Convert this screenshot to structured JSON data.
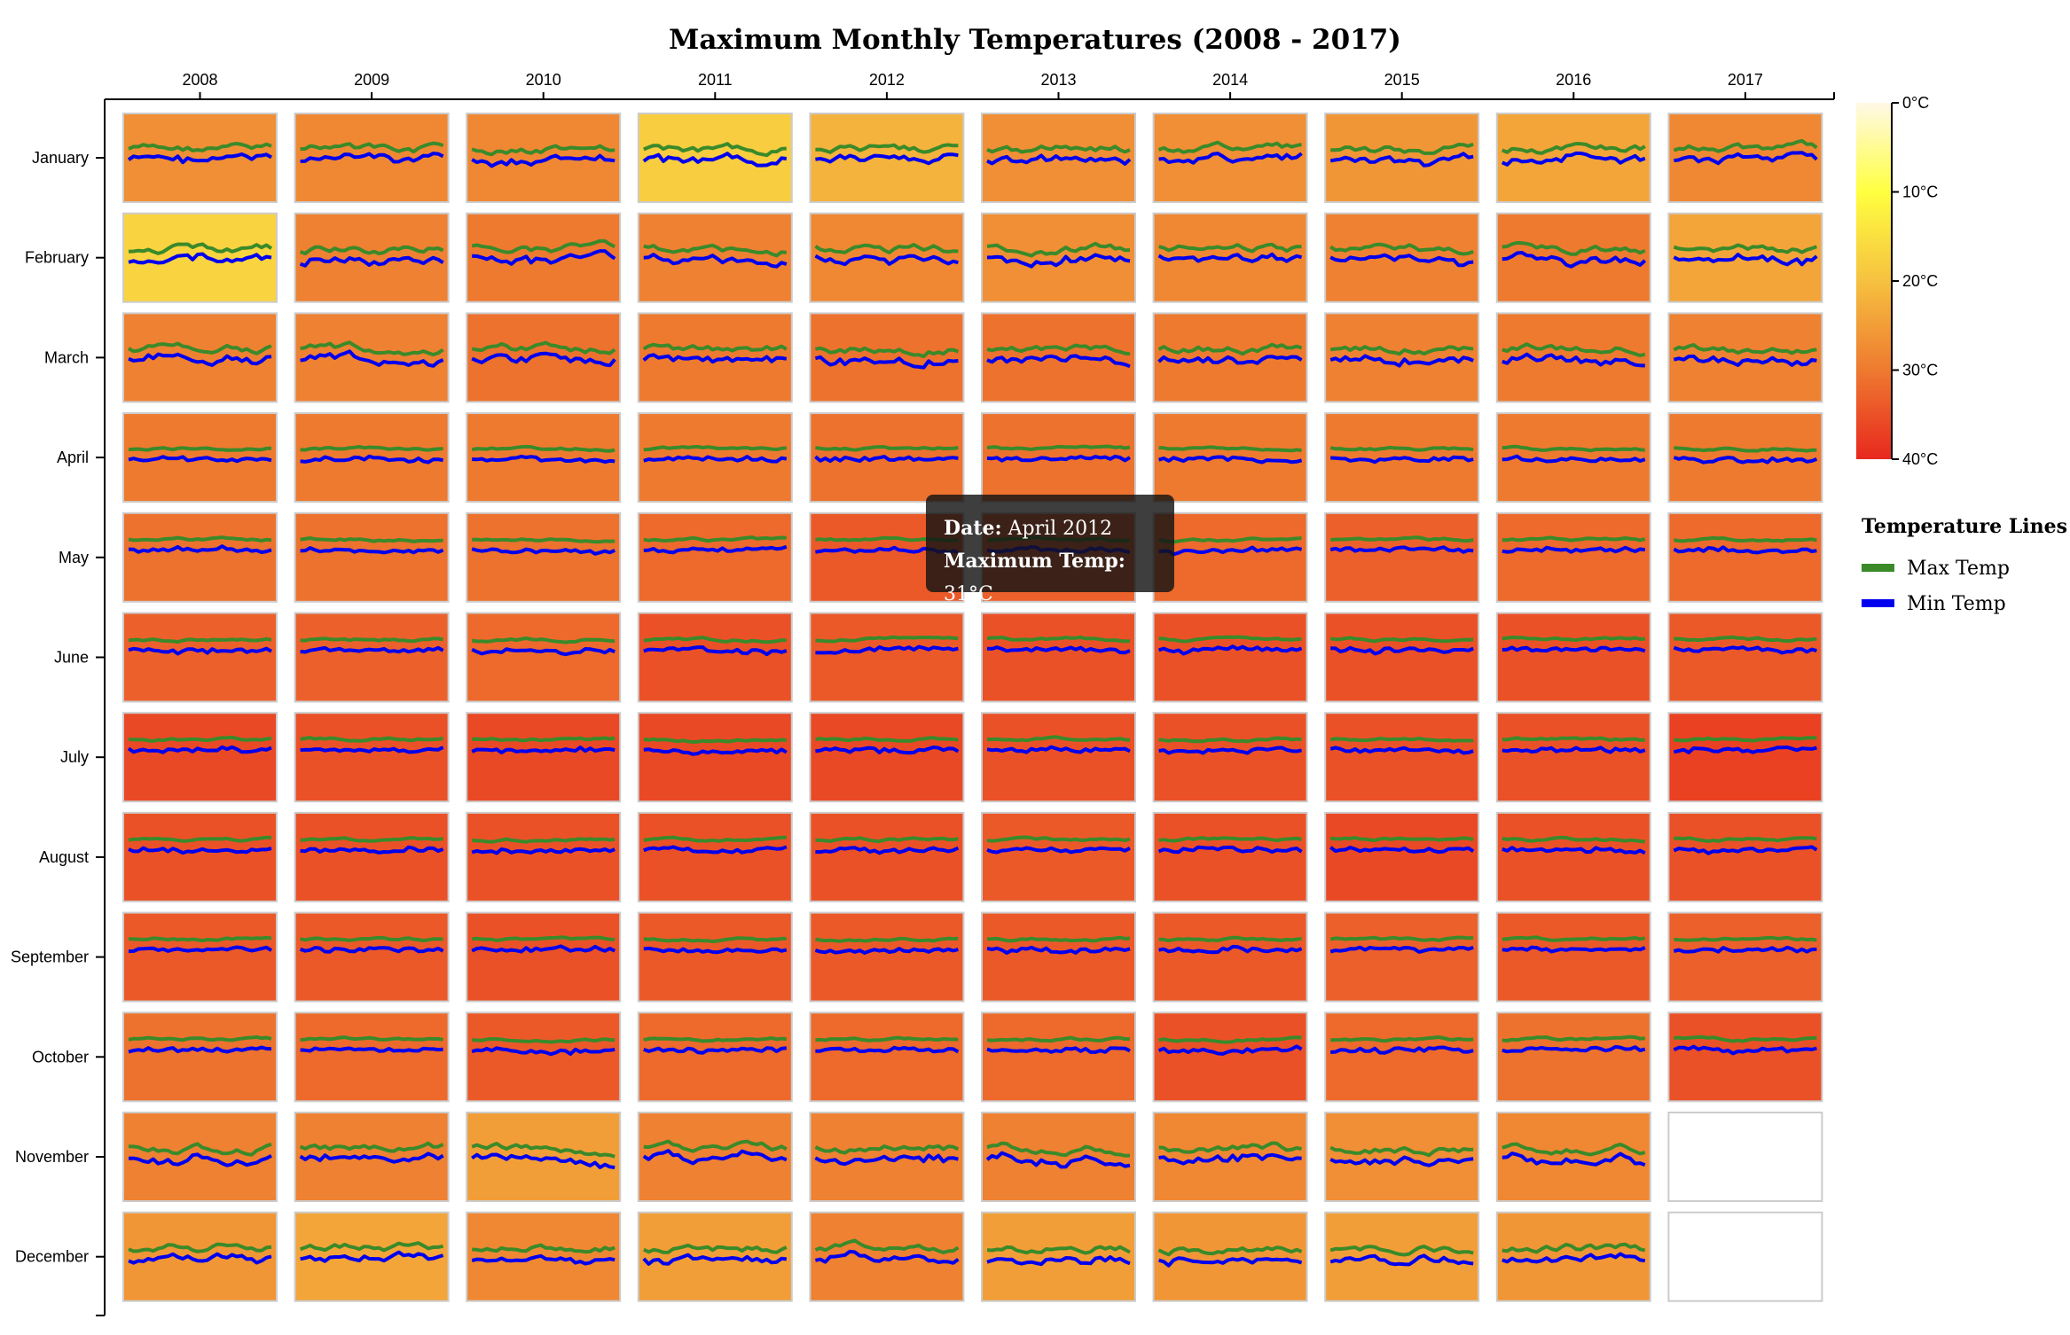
{
  "colors": {
    "max_line": "#3a8a2a",
    "min_line": "#0000ee",
    "axis": "#000000",
    "cell_border": "#cccccc",
    "scale": [
      "#fff8e6",
      "#ffff40",
      "#f6c140",
      "#ee7a30",
      "#e8281e"
    ]
  },
  "chart_data": {
    "type": "heatmap",
    "title": "Maximum Monthly Temperatures (2008 - 2017)",
    "x_categories": [
      "2008",
      "2009",
      "2010",
      "2011",
      "2012",
      "2013",
      "2014",
      "2015",
      "2016",
      "2017"
    ],
    "y_categories": [
      "January",
      "February",
      "March",
      "April",
      "May",
      "June",
      "July",
      "August",
      "September",
      "October",
      "November",
      "December"
    ],
    "color_scale": {
      "domain": [
        0,
        40
      ],
      "ticks": [
        "0°C",
        "10°C",
        "20°C",
        "30°C",
        "40°C"
      ]
    },
    "max_temps": [
      [
        27,
        28,
        28,
        18,
        22,
        27,
        27,
        26,
        24,
        28
      ],
      [
        17,
        29,
        30,
        29,
        28,
        27,
        28,
        29,
        30,
        24
      ],
      [
        29,
        29,
        31,
        30,
        31,
        31,
        30,
        29,
        30,
        29
      ],
      [
        30,
        30,
        30,
        30,
        31,
        31,
        30,
        30,
        30,
        30
      ],
      [
        31,
        31,
        31,
        32,
        34,
        33,
        32,
        33,
        32,
        32
      ],
      [
        33,
        33,
        32,
        35,
        34,
        35,
        35,
        35,
        35,
        34
      ],
      [
        36,
        35,
        36,
        36,
        36,
        35,
        35,
        35,
        35,
        37
      ],
      [
        35,
        35,
        35,
        35,
        35,
        34,
        35,
        36,
        35,
        35
      ],
      [
        34,
        34,
        35,
        34,
        34,
        34,
        34,
        33,
        34,
        33
      ],
      [
        31,
        32,
        34,
        32,
        32,
        32,
        35,
        32,
        31,
        35
      ],
      [
        29,
        29,
        25,
        29,
        29,
        29,
        28,
        27,
        28,
        null
      ],
      [
        26,
        24,
        28,
        25,
        29,
        25,
        26,
        25,
        26,
        null
      ]
    ],
    "legend": {
      "title": "Temperature Lines",
      "entries": [
        "Max Temp",
        "Min Temp"
      ]
    }
  },
  "tooltip": {
    "date_label": "Date:",
    "date_value": "April 2012",
    "temp_label": "Maximum Temp:",
    "temp_value": "31°C"
  }
}
